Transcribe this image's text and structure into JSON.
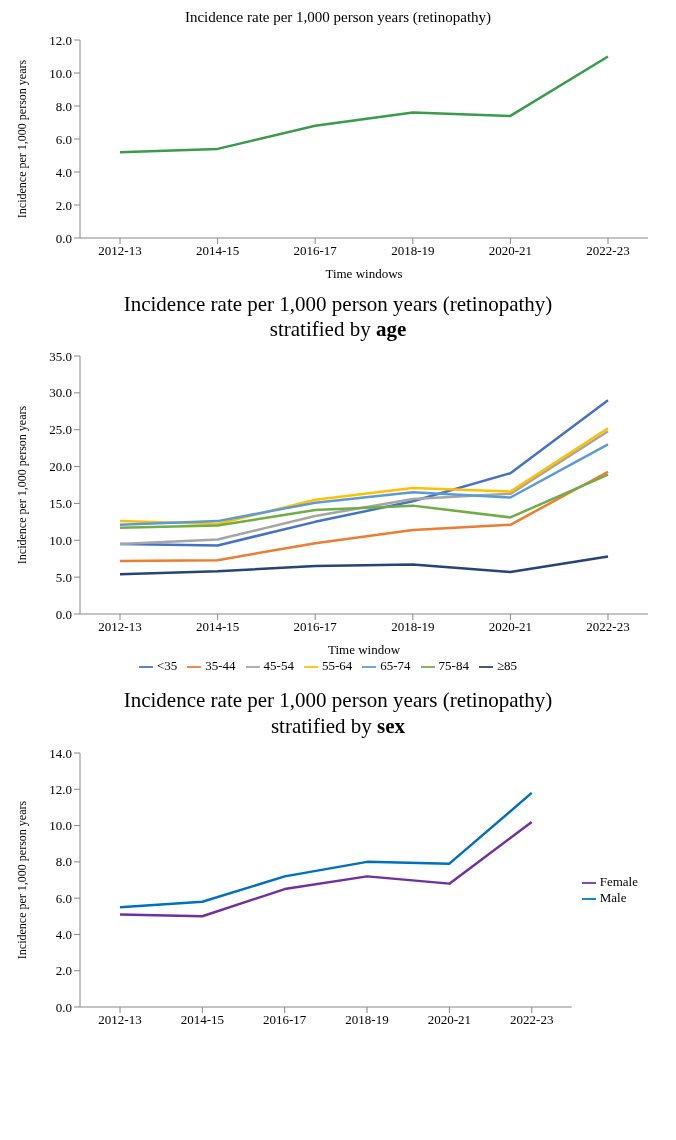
{
  "chart_data": [
    {
      "type": "line",
      "title": "Incidence rate per 1,000 person years (retinopathy)",
      "xlabel": "Time windows",
      "ylabel": "Incidence per 1,000 person years",
      "categories": [
        "2012-13",
        "2014-15",
        "2016-17",
        "2018-19",
        "2020-21",
        "2022-23"
      ],
      "series": [
        {
          "color": "#3a9c4a",
          "values": [
            5.2,
            5.4,
            6.8,
            7.6,
            7.4,
            11.0
          ]
        }
      ],
      "ylim": [
        0,
        12
      ],
      "yticks": [
        {
          "value": 0,
          "label": "0.0"
        },
        {
          "value": 2,
          "label": "2.0"
        },
        {
          "value": 4,
          "label": "4.0"
        },
        {
          "value": 6,
          "label": "6.0"
        },
        {
          "value": 8,
          "label": "8.0"
        },
        {
          "value": 10,
          "label": "10.0"
        },
        {
          "value": 12,
          "label": "12.0"
        }
      ],
      "grid": false,
      "legend": false,
      "marker": "none",
      "line_style": "solid"
    },
    {
      "type": "line",
      "title": "Incidence rate per 1,000 person years (retinopathy)",
      "subtitle": "stratified by age",
      "xlabel": "Time window",
      "ylabel": "Incidence per 1,000 person years",
      "categories": [
        "2012-13",
        "2014-15",
        "2016-17",
        "2018-19",
        "2020-21",
        "2022-23"
      ],
      "series": [
        {
          "name": "<35",
          "color": "#4472c4",
          "values": [
            9.5,
            9.3,
            12.5,
            15.3,
            19.1,
            29.0
          ]
        },
        {
          "name": "35-44",
          "color": "#ed7d31",
          "values": [
            7.2,
            7.3,
            9.6,
            11.4,
            12.1,
            19.3
          ]
        },
        {
          "name": "45-54",
          "color": "#a5a5a5",
          "values": [
            9.5,
            10.1,
            13.3,
            15.6,
            16.3,
            24.8
          ]
        },
        {
          "name": "55-64",
          "color": "#ffc000",
          "values": [
            12.6,
            12.2,
            15.5,
            17.1,
            16.6,
            25.2
          ]
        },
        {
          "name": "65-74",
          "color": "#5b9bd5",
          "values": [
            12.1,
            12.6,
            15.1,
            16.5,
            15.8,
            23.0
          ]
        },
        {
          "name": "75-84",
          "color": "#70ad47",
          "values": [
            11.7,
            12.0,
            14.1,
            14.7,
            13.1,
            18.9
          ]
        },
        {
          "name": "≥85",
          "color": "#264478",
          "values": [
            5.4,
            5.8,
            6.5,
            6.7,
            5.7,
            7.8
          ]
        }
      ],
      "ylim": [
        0,
        35
      ],
      "yticks": [
        {
          "value": 0,
          "label": "0.0"
        },
        {
          "value": 5,
          "label": "5.0"
        },
        {
          "value": 10,
          "label": "10.0"
        },
        {
          "value": 15,
          "label": "15.0"
        },
        {
          "value": 20,
          "label": "20.0"
        },
        {
          "value": 25,
          "label": "25.0"
        },
        {
          "value": 30,
          "label": "30.0"
        },
        {
          "value": 35,
          "label": "35.0"
        }
      ],
      "grid": false,
      "legend": "bottom",
      "marker": "none",
      "line_style": "solid"
    },
    {
      "type": "line",
      "title": "Incidence rate per 1,000 person years (retinopathy)",
      "subtitle": "stratified by sex",
      "ylabel": "Incidence per 1,000 person years",
      "categories": [
        "2012-13",
        "2014-15",
        "2016-17",
        "2018-19",
        "2020-21",
        "2022-23"
      ],
      "series": [
        {
          "name": "Female",
          "color": "#7030a0",
          "values": [
            5.1,
            5.0,
            6.5,
            7.2,
            6.8,
            10.2
          ]
        },
        {
          "name": "Male",
          "color": "#0070c0",
          "values": [
            5.5,
            5.8,
            7.2,
            8.0,
            7.9,
            11.8
          ]
        }
      ],
      "ylim": [
        0,
        14
      ],
      "yticks": [
        {
          "value": 0,
          "label": "0.0"
        },
        {
          "value": 2,
          "label": "2.0"
        },
        {
          "value": 4,
          "label": "4.0"
        },
        {
          "value": 6,
          "label": "6.0"
        },
        {
          "value": 8,
          "label": "8.0"
        },
        {
          "value": 10,
          "label": "10.0"
        },
        {
          "value": 12,
          "label": "12.0"
        },
        {
          "value": 14,
          "label": "14.0"
        }
      ],
      "grid": false,
      "legend": "right",
      "marker": "none",
      "line_style": "solid"
    }
  ]
}
